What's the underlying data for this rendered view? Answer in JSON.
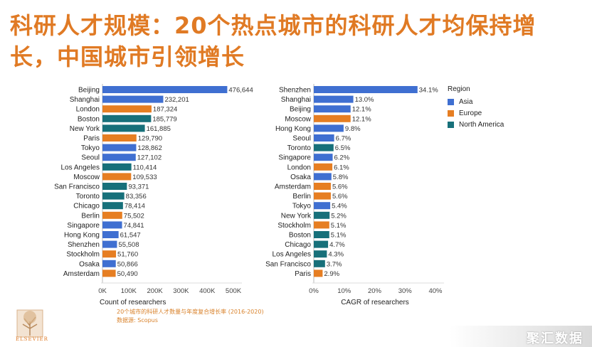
{
  "page": {
    "title": "科研人才规模：20个热点城市的科研人才均保持增长，中国城市引领增长",
    "footnote_line1": "20个城市的科研人才数量与年度复合增长率 (2016-2020)",
    "footnote_line2": "数据源: Scopus",
    "logo_text": "ELSEVIER",
    "watermark": "聚汇数据"
  },
  "legend": {
    "title": "Region",
    "items": [
      {
        "label": "Asia",
        "color": "#3f6fd1"
      },
      {
        "label": "Europe",
        "color": "#e67e22"
      },
      {
        "label": "North America",
        "color": "#17707a"
      }
    ]
  },
  "colors": {
    "Asia": "#3f6fd1",
    "Europe": "#e67e22",
    "North America": "#17707a"
  },
  "chart_data": [
    {
      "type": "bar",
      "orientation": "horizontal",
      "xlabel": "Count of researchers",
      "xlim": [
        0,
        500000
      ],
      "ticks": [
        0,
        100000,
        200000,
        300000,
        400000,
        500000
      ],
      "tick_labels": [
        "0K",
        "100K",
        "200K",
        "300K",
        "400K",
        "500K"
      ],
      "bars": [
        {
          "city": "Beijing",
          "value": 476644,
          "label": "476,644",
          "region": "Asia"
        },
        {
          "city": "Shanghai",
          "value": 232201,
          "label": "232,201",
          "region": "Asia"
        },
        {
          "city": "London",
          "value": 187324,
          "label": "187,324",
          "region": "Europe"
        },
        {
          "city": "Boston",
          "value": 185779,
          "label": "185,779",
          "region": "North America"
        },
        {
          "city": "New York",
          "value": 161885,
          "label": "161,885",
          "region": "North America"
        },
        {
          "city": "Paris",
          "value": 129790,
          "label": "129,790",
          "region": "Europe"
        },
        {
          "city": "Tokyo",
          "value": 128862,
          "label": "128,862",
          "region": "Asia"
        },
        {
          "city": "Seoul",
          "value": 127102,
          "label": "127,102",
          "region": "Asia"
        },
        {
          "city": "Los Angeles",
          "value": 110414,
          "label": "110,414",
          "region": "North America"
        },
        {
          "city": "Moscow",
          "value": 109533,
          "label": "109,533",
          "region": "Europe"
        },
        {
          "city": "San Francisco",
          "value": 93371,
          "label": "93,371",
          "region": "North America"
        },
        {
          "city": "Toronto",
          "value": 83356,
          "label": "83,356",
          "region": "North America"
        },
        {
          "city": "Chicago",
          "value": 78414,
          "label": "78,414",
          "region": "North America"
        },
        {
          "city": "Berlin",
          "value": 75502,
          "label": "75,502",
          "region": "Europe"
        },
        {
          "city": "Singapore",
          "value": 74841,
          "label": "74,841",
          "region": "Asia"
        },
        {
          "city": "Hong Kong",
          "value": 61547,
          "label": "61,547",
          "region": "Asia"
        },
        {
          "city": "Shenzhen",
          "value": 55508,
          "label": "55,508",
          "region": "Asia"
        },
        {
          "city": "Stockholm",
          "value": 51760,
          "label": "51,760",
          "region": "Europe"
        },
        {
          "city": "Osaka",
          "value": 50866,
          "label": "50,866",
          "region": "Asia"
        },
        {
          "city": "Amsterdam",
          "value": 50490,
          "label": "50,490",
          "region": "Europe"
        }
      ]
    },
    {
      "type": "bar",
      "orientation": "horizontal",
      "xlabel": "CAGR of researchers",
      "xlim": [
        0,
        40
      ],
      "ticks": [
        0,
        10,
        20,
        30,
        40
      ],
      "tick_labels": [
        "0%",
        "10%",
        "20%",
        "30%",
        "40%"
      ],
      "bars": [
        {
          "city": "Shenzhen",
          "value": 34.1,
          "label": "34.1%",
          "region": "Asia"
        },
        {
          "city": "Shanghai",
          "value": 13.0,
          "label": "13.0%",
          "region": "Asia"
        },
        {
          "city": "Beijing",
          "value": 12.1,
          "label": "12.1%",
          "region": "Asia"
        },
        {
          "city": "Moscow",
          "value": 12.1,
          "label": "12.1%",
          "region": "Europe"
        },
        {
          "city": "Hong Kong",
          "value": 9.8,
          "label": "9.8%",
          "region": "Asia"
        },
        {
          "city": "Seoul",
          "value": 6.7,
          "label": "6.7%",
          "region": "Asia"
        },
        {
          "city": "Toronto",
          "value": 6.5,
          "label": "6.5%",
          "region": "North America"
        },
        {
          "city": "Singapore",
          "value": 6.2,
          "label": "6.2%",
          "region": "Asia"
        },
        {
          "city": "London",
          "value": 6.1,
          "label": "6.1%",
          "region": "Europe"
        },
        {
          "city": "Osaka",
          "value": 5.8,
          "label": "5.8%",
          "region": "Asia"
        },
        {
          "city": "Amsterdam",
          "value": 5.6,
          "label": "5.6%",
          "region": "Europe"
        },
        {
          "city": "Berlin",
          "value": 5.6,
          "label": "5.6%",
          "region": "Europe"
        },
        {
          "city": "Tokyo",
          "value": 5.4,
          "label": "5.4%",
          "region": "Asia"
        },
        {
          "city": "New York",
          "value": 5.2,
          "label": "5.2%",
          "region": "North America"
        },
        {
          "city": "Stockholm",
          "value": 5.1,
          "label": "5.1%",
          "region": "Europe"
        },
        {
          "city": "Boston",
          "value": 5.1,
          "label": "5.1%",
          "region": "North America"
        },
        {
          "city": "Chicago",
          "value": 4.7,
          "label": "4.7%",
          "region": "North America"
        },
        {
          "city": "Los Angeles",
          "value": 4.3,
          "label": "4.3%",
          "region": "North America"
        },
        {
          "city": "San Francisco",
          "value": 3.7,
          "label": "3.7%",
          "region": "North America"
        },
        {
          "city": "Paris",
          "value": 2.9,
          "label": "2.9%",
          "region": "Europe"
        }
      ]
    }
  ]
}
